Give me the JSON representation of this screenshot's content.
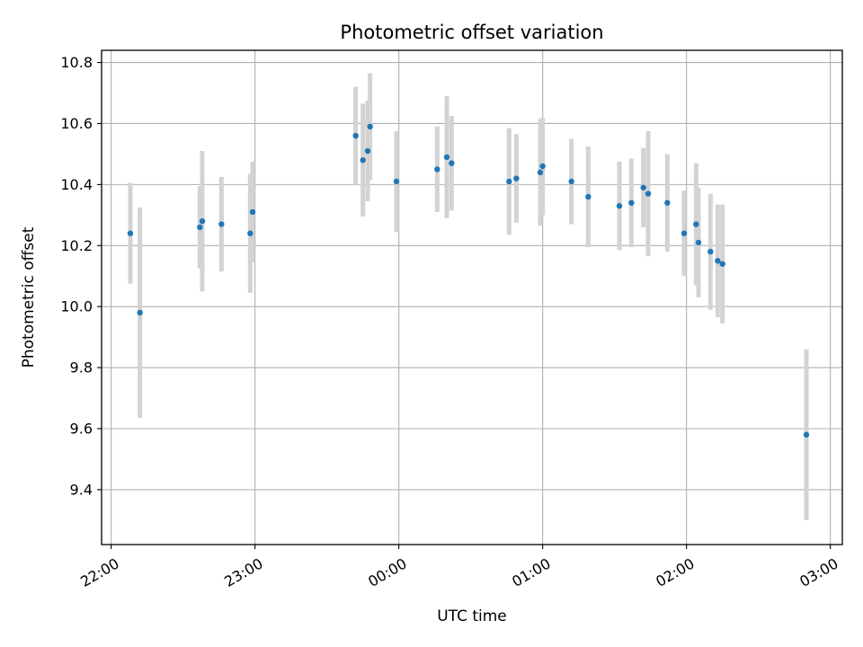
{
  "chart_data": {
    "type": "scatter",
    "title": "Photometric offset variation",
    "xlabel": "UTC time",
    "ylabel": "Photometric offset",
    "x_ticks": [
      "22:00",
      "23:00",
      "00:00",
      "01:00",
      "02:00",
      "03:00"
    ],
    "y_ticks": [
      "9.4",
      "9.6",
      "9.8",
      "10.0",
      "10.2",
      "10.4",
      "10.6",
      "10.8"
    ],
    "xlim": [
      "21:56",
      "03:05"
    ],
    "ylim": [
      9.22,
      10.84
    ],
    "grid": true,
    "colors": {
      "point": "#1f77b4",
      "errorbar": "#d3d3d3",
      "grid": "#b0b0b0"
    },
    "series": [
      {
        "points": [
          {
            "x": "22:08",
            "y": 10.24,
            "err": 0.165
          },
          {
            "x": "22:12",
            "y": 9.98,
            "err": 0.345
          },
          {
            "x": "22:37",
            "y": 10.26,
            "err": 0.135
          },
          {
            "x": "22:38",
            "y": 10.28,
            "err": 0.23
          },
          {
            "x": "22:46",
            "y": 10.27,
            "err": 0.155
          },
          {
            "x": "22:58",
            "y": 10.24,
            "err": 0.195
          },
          {
            "x": "22:59",
            "y": 10.31,
            "err": 0.165
          },
          {
            "x": "23:42",
            "y": 10.56,
            "err": 0.16
          },
          {
            "x": "23:45",
            "y": 10.48,
            "err": 0.185
          },
          {
            "x": "23:47",
            "y": 10.51,
            "err": 0.165
          },
          {
            "x": "23:48",
            "y": 10.59,
            "err": 0.175
          },
          {
            "x": "23:59",
            "y": 10.41,
            "err": 0.165
          },
          {
            "x": "00:16",
            "y": 10.45,
            "err": 0.14
          },
          {
            "x": "00:20",
            "y": 10.49,
            "err": 0.2
          },
          {
            "x": "00:22",
            "y": 10.47,
            "err": 0.155
          },
          {
            "x": "00:46",
            "y": 10.41,
            "err": 0.175
          },
          {
            "x": "00:49",
            "y": 10.42,
            "err": 0.145
          },
          {
            "x": "00:59",
            "y": 10.44,
            "err": 0.175
          },
          {
            "x": "01:00",
            "y": 10.46,
            "err": 0.16
          },
          {
            "x": "01:12",
            "y": 10.41,
            "err": 0.14
          },
          {
            "x": "01:19",
            "y": 10.36,
            "err": 0.165
          },
          {
            "x": "01:32",
            "y": 10.33,
            "err": 0.145
          },
          {
            "x": "01:37",
            "y": 10.34,
            "err": 0.145
          },
          {
            "x": "01:42",
            "y": 10.39,
            "err": 0.13
          },
          {
            "x": "01:44",
            "y": 10.37,
            "err": 0.205
          },
          {
            "x": "01:52",
            "y": 10.34,
            "err": 0.16
          },
          {
            "x": "01:59",
            "y": 10.24,
            "err": 0.14
          },
          {
            "x": "02:04",
            "y": 10.27,
            "err": 0.2
          },
          {
            "x": "02:05",
            "y": 10.21,
            "err": 0.18
          },
          {
            "x": "02:10",
            "y": 10.18,
            "err": 0.19
          },
          {
            "x": "02:13",
            "y": 10.15,
            "err": 0.185
          },
          {
            "x": "02:15",
            "y": 10.14,
            "err": 0.195
          },
          {
            "x": "02:50",
            "y": 9.58,
            "err": 0.28
          }
        ]
      }
    ]
  }
}
